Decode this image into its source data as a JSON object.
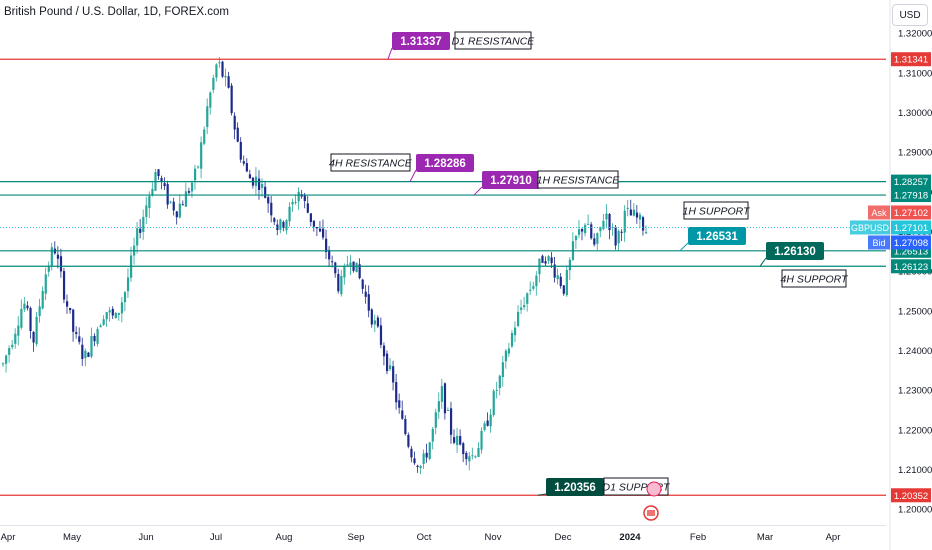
{
  "header": {
    "title": "British Pound / U.S. Dollar, 1D, FOREX.com",
    "currency_button": "USD"
  },
  "chart_data": {
    "type": "candlestick",
    "symbol": "GBPUSD",
    "x_ticks": [
      "Apr",
      "May",
      "Jun",
      "Jul",
      "Aug",
      "Sep",
      "Oct",
      "Nov",
      "Dec",
      "2024",
      "Feb",
      "Mar",
      "Apr"
    ],
    "y_ticks": [
      "1.32000",
      "1.31000",
      "1.30000",
      "1.29000",
      "1.28000",
      "1.27000",
      "1.26000",
      "1.25000",
      "1.24000",
      "1.23000",
      "1.22000",
      "1.21000",
      "1.20000"
    ],
    "ylim": [
      1.1988,
      1.3238
    ],
    "close_path": [
      1.2365,
      1.244,
      1.2525,
      1.2425,
      1.258,
      1.2665,
      1.2545,
      1.2435,
      1.238,
      1.2445,
      1.2505,
      1.2475,
      1.2555,
      1.2675,
      1.2765,
      1.2855,
      1.2785,
      1.2755,
      1.2795,
      1.285,
      1.301,
      1.313,
      1.306,
      1.292,
      1.2835,
      1.283,
      1.2775,
      1.2705,
      1.2745,
      1.2805,
      1.274,
      1.2695,
      1.263,
      1.2555,
      1.2645,
      1.2575,
      1.2495,
      1.2425,
      1.2335,
      1.2225,
      1.2145,
      1.2105,
      1.2185,
      1.2295,
      1.2185,
      1.2155,
      1.2135,
      1.2185,
      1.2275,
      1.2355,
      1.2455,
      1.2525,
      1.2575,
      1.2645,
      1.2605,
      1.2555,
      1.2675,
      1.2725,
      1.2655,
      1.2755,
      1.2675,
      1.2745,
      1.2735,
      1.2705
    ],
    "candle_colors": {
      "up": "#26a69a",
      "down": "#1e2a8a"
    },
    "levels": [
      {
        "name": "D1 RESISTANCE",
        "price": 1.31341,
        "price_label": "1.31341",
        "box_value": "1.31337",
        "line_color": "#e53935",
        "label_color": "#e53935",
        "box_color": "#9c27b0"
      },
      {
        "name": "4H RESISTANCE",
        "price": 1.28257,
        "price_label": "1.28257",
        "box_value": "1.28286",
        "line_color": "#00897b",
        "label_color": "#00897b",
        "box_color": "#9c27b0"
      },
      {
        "name": "1H RESISTANCE",
        "price": 1.27918,
        "price_label": "1.27918",
        "box_value": "1.27910",
        "line_color": "#00897b",
        "label_color": "#00897b",
        "box_color": "#9c27b0"
      },
      {
        "name": "1H SUPPORT",
        "price": 1.26513,
        "price_label": "1.26513",
        "box_value": "1.26531",
        "line_color": "#00897b",
        "label_color": "#00897b",
        "box_color": "#0097a7"
      },
      {
        "name": "4H SUPPORT",
        "price": 1.26123,
        "price_label": "1.26123",
        "box_value": "1.26130",
        "line_color": "#00897b",
        "label_color": "#00897b",
        "box_color": "#00695c"
      },
      {
        "name": "D1 SUPPORT",
        "price": 1.20352,
        "price_label": "1.20352",
        "box_value": "1.20356",
        "line_color": "#e53935",
        "label_color": "#e53935",
        "box_color": "#004d40"
      }
    ],
    "quote_labels": [
      {
        "tag": "Ask",
        "value": "1.27102",
        "color": "#ef5350"
      },
      {
        "tag": "GBPUSD",
        "value": "1.27101",
        "color": "#26c6da"
      },
      {
        "tag": "Bid",
        "value": "1.27098",
        "color": "#2962ff"
      }
    ],
    "last_price": 1.27101
  }
}
